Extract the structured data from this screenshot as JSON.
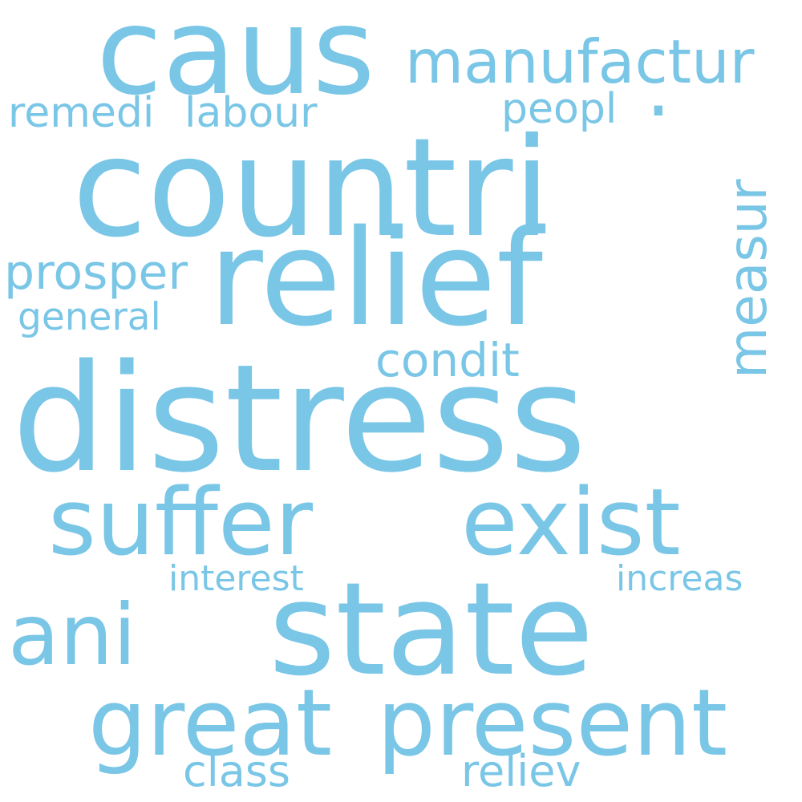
{
  "cloud": {
    "color": "#7ac6e6",
    "words": {
      "caus": "caus",
      "manufactur": "manufactur",
      "remedi": "remedi",
      "labour": "labour",
      "peopl": "peopl",
      "dot": ".",
      "countri": "countri",
      "measur": "measur",
      "prosper": "prosper",
      "relief": "relief",
      "general": "general",
      "condit": "condit",
      "distress": "distress",
      "suffer": "suffer",
      "exist": "exist",
      "interest": "interest",
      "increas": "increas",
      "ani": "ani",
      "state": "state",
      "great": "great",
      "present": "present",
      "class": "class",
      "reliev": "reliev"
    }
  }
}
